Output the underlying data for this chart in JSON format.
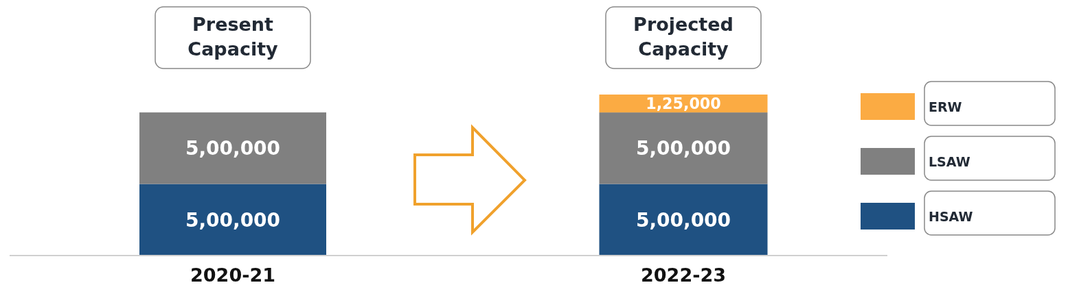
{
  "chart_data": {
    "type": "bar",
    "stacked": true,
    "categories": [
      "2020-21",
      "2022-23"
    ],
    "series": [
      {
        "name": "HSAW",
        "color": "#1f5182",
        "values": [
          500000,
          500000
        ],
        "value_labels": [
          "5,00,000",
          "5,00,000"
        ]
      },
      {
        "name": "LSAW",
        "color": "#808080",
        "values": [
          500000,
          500000
        ],
        "value_labels": [
          "5,00,000",
          "5,00,000"
        ]
      },
      {
        "name": "ERW",
        "color": "#fbab43",
        "values": [
          null,
          125000
        ],
        "value_labels": [
          null,
          "1,25,000"
        ]
      }
    ],
    "annotations": [
      "Present Capacity",
      "Projected Capacity"
    ],
    "legend": "right"
  }
}
